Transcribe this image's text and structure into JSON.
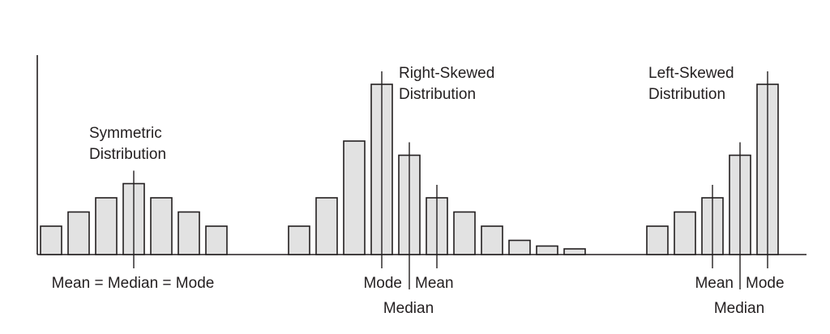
{
  "chart_data": [
    {
      "type": "bar",
      "title_lines": [
        "Symmetric",
        "Distribution"
      ],
      "values": [
        2,
        3,
        4,
        5,
        4,
        3,
        2
      ],
      "markers": [
        {
          "bar_index": 3,
          "label": "Mean = Median = Mode"
        }
      ]
    },
    {
      "type": "bar",
      "title_lines": [
        "Right-Skewed",
        "Distribution"
      ],
      "values": [
        2,
        4,
        8,
        12,
        7,
        4,
        3,
        2,
        1,
        0.6,
        0.4
      ],
      "markers": [
        {
          "bar_index": 3,
          "label": "Mode"
        },
        {
          "bar_index": 4,
          "label": "Median"
        },
        {
          "bar_index": 5,
          "label": "Mean"
        }
      ]
    },
    {
      "type": "bar",
      "title_lines": [
        "Left-Skewed",
        "Distribution"
      ],
      "values": [
        2,
        3,
        4,
        7,
        12
      ],
      "markers": [
        {
          "bar_index": 2,
          "label": "Mean"
        },
        {
          "bar_index": 3,
          "label": "Median"
        },
        {
          "bar_index": 4,
          "label": "Mode"
        }
      ]
    }
  ]
}
